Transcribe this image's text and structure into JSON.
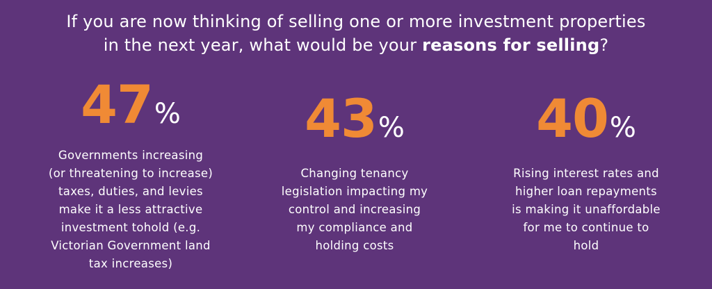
{
  "header": {
    "line1": "If you are now thinking of selling one or more investment properties",
    "line2_prefix": "in the next year, what would be your ",
    "line2_bold": "reasons for selling",
    "line2_suffix": "?"
  },
  "stats": [
    {
      "value": "47",
      "unit": "%",
      "lines": [
        "Governments increasing",
        "(or threatening to increase)",
        "taxes, duties, and levies",
        "make it a less attractive",
        "investment tohold (e.g.",
        "Victorian Government land",
        "tax increases)"
      ]
    },
    {
      "value": "43",
      "unit": "%",
      "lines": [
        "Changing tenancy",
        "legislation impacting my",
        "control and increasing",
        "my compliance and",
        "holding costs"
      ]
    },
    {
      "value": "40",
      "unit": "%",
      "lines": [
        "Rising interest rates and",
        "higher loan repayments",
        "is making it unaffordable",
        "for me to continue to",
        "hold"
      ]
    }
  ],
  "colors": {
    "background": "#5e347a",
    "accent": "#f08a35",
    "text": "#ffffff"
  }
}
